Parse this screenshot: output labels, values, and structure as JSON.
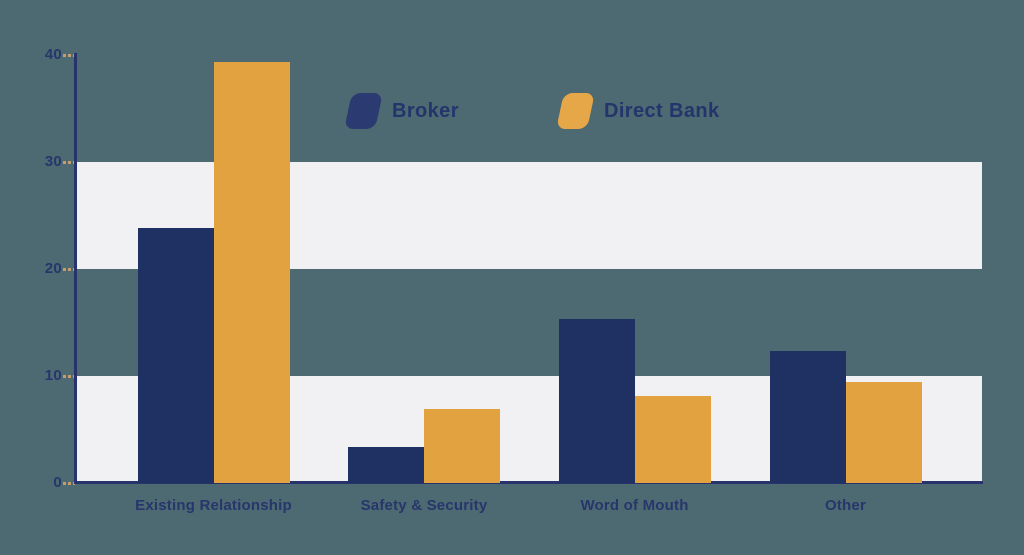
{
  "chart_data": {
    "type": "bar",
    "title": "",
    "xlabel": "",
    "ylabel": "",
    "categories": [
      "Existing Relationship",
      "Safety & Security",
      "Word of Mouth",
      "Other"
    ],
    "series": [
      {
        "name": "Broker",
        "values": [
          23.8,
          3.4,
          15.3,
          12.3
        ]
      },
      {
        "name": "Direct Bank",
        "values": [
          39.3,
          6.9,
          8.1,
          9.4
        ]
      }
    ],
    "ylim": [
      0,
      40
    ],
    "yticks": [
      "0",
      "10",
      "20",
      "30",
      "40"
    ],
    "grid_bands": [
      [
        0,
        10
      ],
      [
        20,
        30
      ]
    ],
    "grid": "alternating horizontal bands",
    "legend_position": "top-center"
  },
  "colors": {
    "background": "#4D6972",
    "band": "#F1F1F3",
    "broker": "#1F3063",
    "direct_bank": "#E2A240",
    "legend_broker_swatch": "#2B3B72",
    "legend_direct_bank_swatch": "#E6A748",
    "axis": "#27336A",
    "label_text": "#27366B",
    "tick_mark": "#C89C66"
  },
  "legend": {
    "items": [
      {
        "label": "Broker"
      },
      {
        "label": "Direct Bank"
      }
    ]
  }
}
